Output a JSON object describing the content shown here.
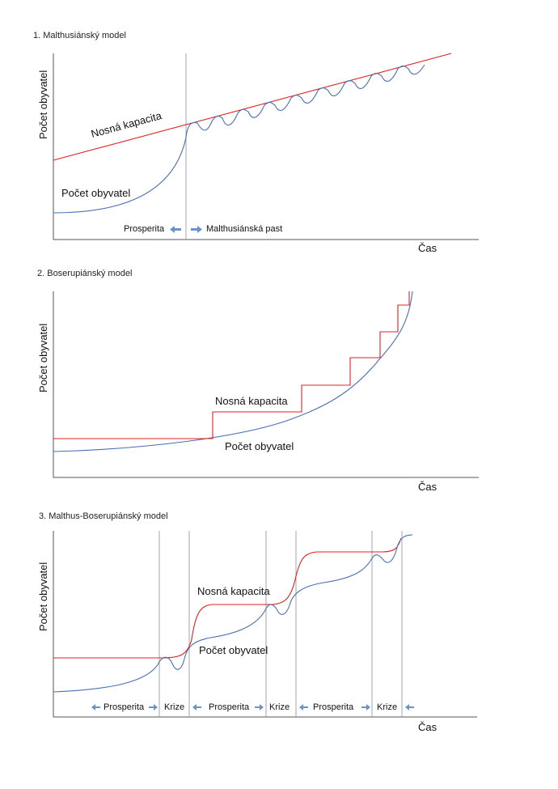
{
  "colors": {
    "population": "#4a6fb5",
    "capacity": "#e02020",
    "arrow": "#6c93c9"
  },
  "panel1": {
    "title": "1. Malthusiánský model",
    "ylabel": "Počet obyvatel",
    "xlabel": "Čas",
    "capacity_label": "Nosná kapacita",
    "population_label": "Počet obyvatel",
    "phase_left": "Prosperita",
    "phase_right": "Malthusiánská past"
  },
  "panel2": {
    "title": "2. Boserupiánský model",
    "ylabel": "Počet obyvatel",
    "xlabel": "Čas",
    "capacity_label": "Nosná kapacita",
    "population_label": "Počet obyvatel"
  },
  "panel3": {
    "title": "3. Malthus-Boserupiánský model",
    "ylabel": "Počet obyvatel",
    "xlabel": "Čas",
    "capacity_label": "Nosná kapacita",
    "population_label": "Počet obyvatel",
    "phases": [
      "Prosperita",
      "Krize",
      "Prosperita",
      "Krize",
      "Prosperita",
      "Krize"
    ]
  }
}
